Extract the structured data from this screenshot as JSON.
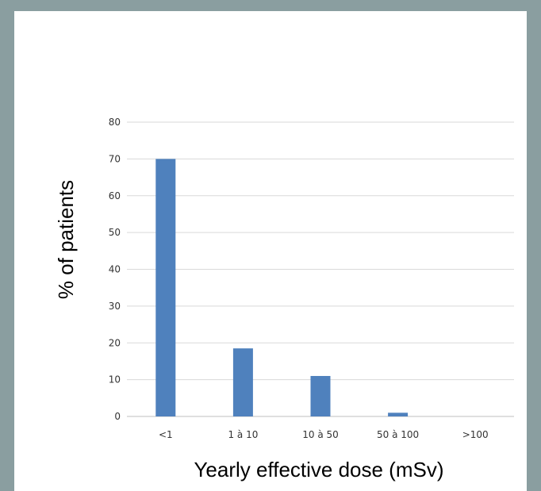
{
  "chart_data": {
    "type": "bar",
    "categories": [
      "<1",
      "1 à 10",
      "10 à 50",
      "50 à 100",
      ">100"
    ],
    "values": [
      70,
      18.5,
      11,
      1,
      0
    ],
    "xlabel": "Yearly effective dose (mSv)",
    "ylabel": "% of patients",
    "ylim": [
      0,
      80
    ],
    "yticks": [
      0,
      10,
      20,
      30,
      40,
      50,
      60,
      70,
      80
    ],
    "grid": true,
    "legend": "none",
    "colors": {
      "bar": "#4f81bd",
      "grid": "#d9d9d9",
      "frame": "#8a9ea0"
    }
  }
}
